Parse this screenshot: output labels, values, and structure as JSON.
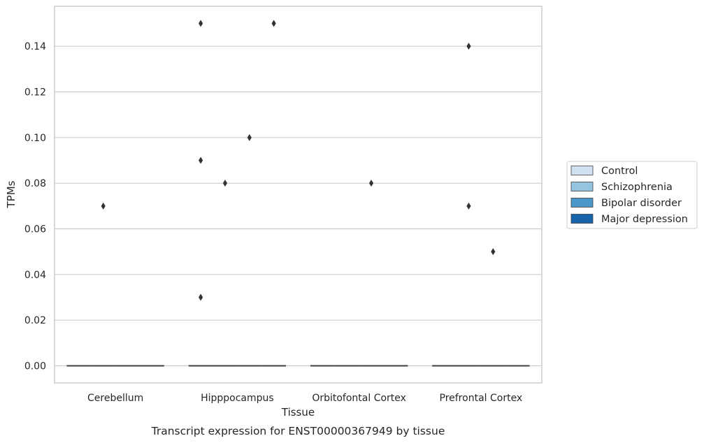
{
  "caption": "Transcript expression for ENST00000367949 by tissue",
  "colors": {
    "grid": "#cccccc",
    "frame": "#cccccc",
    "median": "#3f3f3f",
    "outlier": "#333333",
    "legend_border": "#cccccc"
  },
  "chart_data": {
    "type": "box",
    "xlabel": "Tissue",
    "ylabel": "TPMs",
    "ylim": [
      -0.0075,
      0.1575
    ],
    "yticks": [
      0.0,
      0.02,
      0.04,
      0.06,
      0.08,
      0.1,
      0.12,
      0.14
    ],
    "ytick_labels": [
      "0.00",
      "0.02",
      "0.04",
      "0.06",
      "0.08",
      "0.10",
      "0.12",
      "0.14"
    ],
    "grid": true,
    "legend_position": "right-outside",
    "categories": [
      "Cerebellum",
      "Hipppocampus",
      "Orbitofontal Cortex",
      "Prefrontal Cortex"
    ],
    "series": [
      {
        "name": "Control",
        "color": "#d0e1f2",
        "medians": [
          0,
          0,
          0,
          0
        ],
        "outliers": [
          [],
          [
            0.09,
            0.03,
            0.15
          ],
          [],
          []
        ]
      },
      {
        "name": "Schizophrenia",
        "color": "#94c4df",
        "medians": [
          0,
          0,
          0,
          0
        ],
        "outliers": [
          [
            0.07
          ],
          [
            0.08
          ],
          [],
          [
            0.14,
            0.07
          ]
        ]
      },
      {
        "name": "Bipolar disorder",
        "color": "#4a98c9",
        "medians": [
          0,
          0,
          0,
          0
        ],
        "outliers": [
          [],
          [
            0.1
          ],
          [
            0.08
          ],
          [
            0.05
          ]
        ]
      },
      {
        "name": "Major depression",
        "color": "#1764ab",
        "medians": [
          0,
          0,
          0,
          0
        ],
        "outliers": [
          [],
          [
            0.15
          ],
          [],
          []
        ]
      }
    ]
  }
}
